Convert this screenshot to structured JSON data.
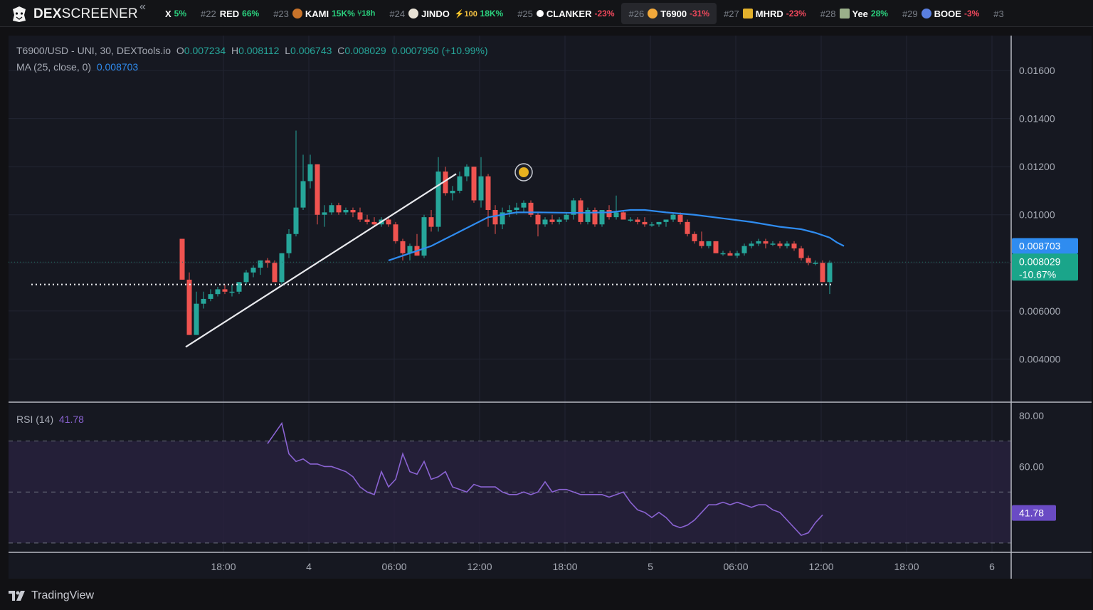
{
  "brand": {
    "name_bold": "DEX",
    "name_rest": "SCREENER",
    "collapse_icon": "«"
  },
  "ticker": [
    {
      "rank": "",
      "symbol": "X",
      "change": "5%",
      "dir": "up",
      "extra": ""
    },
    {
      "rank": "#22",
      "symbol": "RED",
      "change": "66%",
      "dir": "up",
      "extra": ""
    },
    {
      "rank": "#23",
      "symbol": "KAMI",
      "change": "15K%",
      "dir": "up",
      "extra": "18h",
      "icon_color": "#c8732a"
    },
    {
      "rank": "#24",
      "symbol": "JINDO",
      "change": "18K%",
      "dir": "up",
      "extra": "100",
      "icon_color": "#e8e2d6"
    },
    {
      "rank": "#25",
      "symbol": "CLANKER",
      "change": "-23%",
      "dir": "dn",
      "extra": "",
      "icon_color": "#ffffff"
    },
    {
      "rank": "#26",
      "symbol": "T6900",
      "change": "-31%",
      "dir": "dn",
      "extra": "",
      "icon_color": "#f2a93b",
      "active": true
    },
    {
      "rank": "#27",
      "symbol": "MHRD",
      "change": "-23%",
      "dir": "dn",
      "extra": "",
      "icon_color": "#e3b12c"
    },
    {
      "rank": "#28",
      "symbol": "Yee",
      "change": "28%",
      "dir": "up",
      "extra": "",
      "icon_color": "#9bb08a"
    },
    {
      "rank": "#29",
      "symbol": "BOOE",
      "change": "-3%",
      "dir": "dn",
      "extra": "",
      "icon_color": "#5a7fe0"
    },
    {
      "rank": "#3",
      "symbol": "",
      "change": "",
      "dir": "up",
      "extra": ""
    }
  ],
  "legend": {
    "pair": "T6900/USD - UNI, 30, DEXTools.io",
    "o_label": "O",
    "o": "0.007234",
    "h_label": "H",
    "h": "0.008112",
    "l_label": "L",
    "l": "0.006743",
    "c_label": "C",
    "c": "0.008029",
    "change": "0.0007950 (+10.99%)",
    "ma_label": "MA (25, close, 0)",
    "ma_value": "0.008703",
    "rsi_label": "RSI (14)",
    "rsi_value": "41.78"
  },
  "price_axis": {
    "ticks": [
      "0.01600",
      "0.01400",
      "0.01200",
      "0.01000",
      "0.006000",
      "0.004000"
    ],
    "ma_badge": "0.008703",
    "price_badge": "0.008029",
    "price_change_badge": "-10.67%"
  },
  "rsi_axis": {
    "ticks": [
      "80.00",
      "60.00"
    ],
    "badge": "41.78"
  },
  "time_axis": [
    "18:00",
    "4",
    "06:00",
    "12:00",
    "18:00",
    "5",
    "06:00",
    "12:00",
    "18:00",
    "6"
  ],
  "footer": {
    "logo_text": "TradingView"
  },
  "colors": {
    "up": "#26a69a",
    "down": "#ef5350",
    "ma": "#2f8cf0",
    "rsi": "#8a63d2",
    "bg": "#161821"
  },
  "chart_data": {
    "type": "candlestick",
    "title": "T6900/USD - UNI, 30, DEXTools.io",
    "xlabel": "",
    "ylabel": "",
    "ylim": [
      0.0025,
      0.0171
    ],
    "x_time_labels": [
      "18:00",
      "4",
      "06:00",
      "12:00",
      "18:00",
      "5",
      "06:00",
      "12:00",
      "18:00",
      "6"
    ],
    "candles": [
      [
        0.009,
        0.009,
        0.0073,
        0.0073
      ],
      [
        0.0073,
        0.0076,
        0.005,
        0.005
      ],
      [
        0.005,
        0.0068,
        0.005,
        0.0063
      ],
      [
        0.0063,
        0.0068,
        0.0061,
        0.0065
      ],
      [
        0.0065,
        0.0069,
        0.0064,
        0.0067
      ],
      [
        0.0067,
        0.007,
        0.0066,
        0.0069
      ],
      [
        0.0069,
        0.0071,
        0.0067,
        0.0068
      ],
      [
        0.0068,
        0.0071,
        0.0066,
        0.0068
      ],
      [
        0.0068,
        0.0072,
        0.0067,
        0.0072
      ],
      [
        0.0072,
        0.0077,
        0.0071,
        0.0076
      ],
      [
        0.0076,
        0.0079,
        0.0074,
        0.0078
      ],
      [
        0.0078,
        0.0081,
        0.0075,
        0.0081
      ],
      [
        0.0081,
        0.0082,
        0.0078,
        0.008
      ],
      [
        0.008,
        0.0081,
        0.0072,
        0.0072
      ],
      [
        0.0072,
        0.0084,
        0.0071,
        0.0084
      ],
      [
        0.0084,
        0.0094,
        0.0082,
        0.0092
      ],
      [
        0.0092,
        0.0135,
        0.0091,
        0.0103
      ],
      [
        0.0103,
        0.0125,
        0.0102,
        0.0114
      ],
      [
        0.0114,
        0.0125,
        0.0111,
        0.0121
      ],
      [
        0.0121,
        0.0121,
        0.0096,
        0.01
      ],
      [
        0.01,
        0.0104,
        0.0095,
        0.0101
      ],
      [
        0.0101,
        0.0105,
        0.01,
        0.0104
      ],
      [
        0.0104,
        0.0105,
        0.01,
        0.0101
      ],
      [
        0.0101,
        0.0103,
        0.01,
        0.0102
      ],
      [
        0.0102,
        0.0103,
        0.0099,
        0.0101
      ],
      [
        0.0101,
        0.0103,
        0.0097,
        0.0098
      ],
      [
        0.0098,
        0.01,
        0.0096,
        0.0097
      ],
      [
        0.0097,
        0.0099,
        0.0095,
        0.0096
      ],
      [
        0.0096,
        0.0099,
        0.0095,
        0.0098
      ],
      [
        0.0098,
        0.0099,
        0.0095,
        0.0096
      ],
      [
        0.0096,
        0.0097,
        0.0088,
        0.0089
      ],
      [
        0.0089,
        0.009,
        0.0081,
        0.0084
      ],
      [
        0.0084,
        0.0088,
        0.0081,
        0.0087
      ],
      [
        0.0087,
        0.0092,
        0.0083,
        0.0083
      ],
      [
        0.0083,
        0.01,
        0.0082,
        0.0099
      ],
      [
        0.0099,
        0.0102,
        0.0093,
        0.0095
      ],
      [
        0.0095,
        0.0124,
        0.0093,
        0.0118
      ],
      [
        0.0118,
        0.012,
        0.0108,
        0.0109
      ],
      [
        0.0109,
        0.0112,
        0.0106,
        0.011
      ],
      [
        0.011,
        0.0118,
        0.0109,
        0.0116
      ],
      [
        0.0116,
        0.0121,
        0.0114,
        0.012
      ],
      [
        0.012,
        0.012,
        0.0105,
        0.0106
      ],
      [
        0.0106,
        0.0124,
        0.0103,
        0.0116
      ],
      [
        0.0116,
        0.0117,
        0.0095,
        0.0102
      ],
      [
        0.0102,
        0.0104,
        0.0092,
        0.0096
      ],
      [
        0.0096,
        0.0103,
        0.0094,
        0.0101
      ],
      [
        0.0101,
        0.0104,
        0.0099,
        0.0102
      ],
      [
        0.0102,
        0.0105,
        0.01,
        0.0103
      ],
      [
        0.0103,
        0.0106,
        0.0101,
        0.0105
      ],
      [
        0.0105,
        0.0106,
        0.0099,
        0.01
      ],
      [
        0.01,
        0.0101,
        0.0091,
        0.0096
      ],
      [
        0.0096,
        0.0099,
        0.0095,
        0.0098
      ],
      [
        0.0098,
        0.01,
        0.0096,
        0.0097
      ],
      [
        0.0097,
        0.0099,
        0.0096,
        0.0098
      ],
      [
        0.0098,
        0.0101,
        0.0097,
        0.01
      ],
      [
        0.01,
        0.0107,
        0.0098,
        0.0106
      ],
      [
        0.0106,
        0.0107,
        0.0096,
        0.0097
      ],
      [
        0.0097,
        0.0103,
        0.0096,
        0.0102
      ],
      [
        0.0102,
        0.0103,
        0.0095,
        0.0096
      ],
      [
        0.0096,
        0.0102,
        0.0095,
        0.0102
      ],
      [
        0.0102,
        0.0104,
        0.0098,
        0.0099
      ],
      [
        0.0099,
        0.0108,
        0.0098,
        0.0101
      ],
      [
        0.0101,
        0.0102,
        0.0098,
        0.0098
      ],
      [
        0.0098,
        0.0099,
        0.0097,
        0.0098
      ],
      [
        0.0098,
        0.0099,
        0.0096,
        0.0097
      ],
      [
        0.0097,
        0.0099,
        0.0095,
        0.0096
      ],
      [
        0.0096,
        0.0097,
        0.0095,
        0.0096
      ],
      [
        0.0096,
        0.0097,
        0.0095,
        0.0097
      ],
      [
        0.0097,
        0.0098,
        0.0095,
        0.0098
      ],
      [
        0.0098,
        0.0101,
        0.0097,
        0.01
      ],
      [
        0.01,
        0.0101,
        0.0096,
        0.0097
      ],
      [
        0.0097,
        0.0098,
        0.0091,
        0.0092
      ],
      [
        0.0092,
        0.0093,
        0.0088,
        0.0089
      ],
      [
        0.0089,
        0.0093,
        0.0086,
        0.0087
      ],
      [
        0.0087,
        0.0089,
        0.0086,
        0.0089
      ],
      [
        0.0089,
        0.0089,
        0.0084,
        0.0084
      ],
      [
        0.0084,
        0.0085,
        0.0083,
        0.0084
      ],
      [
        0.0084,
        0.0085,
        0.0083,
        0.0083
      ],
      [
        0.0083,
        0.0085,
        0.0082,
        0.0084
      ],
      [
        0.0084,
        0.0088,
        0.0083,
        0.0087
      ],
      [
        0.0087,
        0.0089,
        0.0086,
        0.0088
      ],
      [
        0.0088,
        0.009,
        0.0087,
        0.0089
      ],
      [
        0.0089,
        0.009,
        0.0086,
        0.0088
      ],
      [
        0.0088,
        0.0089,
        0.0087,
        0.0088
      ],
      [
        0.0088,
        0.0089,
        0.0086,
        0.0087
      ],
      [
        0.0087,
        0.0089,
        0.0086,
        0.0088
      ],
      [
        0.0088,
        0.0089,
        0.0085,
        0.0086
      ],
      [
        0.0086,
        0.0087,
        0.0081,
        0.0082
      ],
      [
        0.0082,
        0.0083,
        0.0079,
        0.008
      ],
      [
        0.008,
        0.0081,
        0.0079,
        0.008
      ],
      [
        0.008,
        0.0081,
        0.0072,
        0.0072
      ],
      [
        0.0072,
        0.0081,
        0.0067,
        0.008
      ]
    ],
    "ma": [
      [
        29,
        0.0081
      ],
      [
        31,
        0.0083
      ],
      [
        33,
        0.0085
      ],
      [
        35,
        0.0087
      ],
      [
        37,
        0.009
      ],
      [
        39,
        0.0093
      ],
      [
        41,
        0.0096
      ],
      [
        43,
        0.0099
      ],
      [
        45,
        0.01
      ],
      [
        47,
        0.0101
      ],
      [
        50,
        0.0101
      ],
      [
        55,
        0.01008
      ],
      [
        60,
        0.0101
      ],
      [
        63,
        0.0102
      ],
      [
        65,
        0.0102
      ],
      [
        68,
        0.0101
      ],
      [
        72,
        0.01
      ],
      [
        76,
        0.00985
      ],
      [
        80,
        0.0097
      ],
      [
        84,
        0.0095
      ],
      [
        87,
        0.0094
      ],
      [
        89,
        0.00925
      ],
      [
        91,
        0.00905
      ],
      [
        92,
        0.00885
      ],
      [
        93,
        0.0087
      ]
    ],
    "trendline": [
      [
        0.5,
        0.0045
      ],
      [
        38.5,
        0.0117
      ]
    ],
    "horizontal_level": 0.0071,
    "last_price": 0.008029,
    "rsi_ylim": [
      28,
      85
    ],
    "rsi_ref_levels": [
      70,
      50,
      30
    ],
    "rsi": [
      [
        12,
        69
      ],
      [
        13,
        73
      ],
      [
        14,
        77
      ],
      [
        15,
        65
      ],
      [
        16,
        62
      ],
      [
        17,
        63
      ],
      [
        18,
        61
      ],
      [
        19,
        61
      ],
      [
        20,
        60
      ],
      [
        21,
        60
      ],
      [
        22,
        59
      ],
      [
        23,
        58
      ],
      [
        24,
        56
      ],
      [
        25,
        52
      ],
      [
        26,
        50
      ],
      [
        27,
        49
      ],
      [
        28,
        58
      ],
      [
        29,
        52
      ],
      [
        30,
        55
      ],
      [
        31,
        65
      ],
      [
        32,
        58
      ],
      [
        33,
        57
      ],
      [
        34,
        62
      ],
      [
        35,
        55
      ],
      [
        36,
        56
      ],
      [
        37,
        58
      ],
      [
        38,
        52
      ],
      [
        39,
        51
      ],
      [
        40,
        50
      ],
      [
        41,
        53
      ],
      [
        42,
        52
      ],
      [
        43,
        52
      ],
      [
        44,
        52
      ],
      [
        45,
        50
      ],
      [
        46,
        49
      ],
      [
        47,
        49
      ],
      [
        48,
        50
      ],
      [
        49,
        49
      ],
      [
        50,
        50
      ],
      [
        51,
        54
      ],
      [
        52,
        50
      ],
      [
        53,
        51
      ],
      [
        54,
        51
      ],
      [
        55,
        50
      ],
      [
        56,
        49
      ],
      [
        57,
        49
      ],
      [
        58,
        49
      ],
      [
        59,
        49
      ],
      [
        60,
        48
      ],
      [
        61,
        49
      ],
      [
        62,
        50
      ],
      [
        63,
        46
      ],
      [
        64,
        43
      ],
      [
        65,
        42
      ],
      [
        66,
        40
      ],
      [
        67,
        42
      ],
      [
        68,
        40
      ],
      [
        69,
        37
      ],
      [
        70,
        36
      ],
      [
        71,
        37
      ],
      [
        72,
        39
      ],
      [
        73,
        42
      ],
      [
        74,
        45
      ],
      [
        75,
        45
      ],
      [
        76,
        46
      ],
      [
        77,
        45
      ],
      [
        78,
        46
      ],
      [
        79,
        45
      ],
      [
        80,
        44
      ],
      [
        81,
        45
      ],
      [
        82,
        45
      ],
      [
        83,
        43
      ],
      [
        84,
        42
      ],
      [
        85,
        39
      ],
      [
        86,
        36
      ],
      [
        87,
        33
      ],
      [
        88,
        34
      ],
      [
        89,
        38
      ],
      [
        90,
        41
      ]
    ]
  }
}
